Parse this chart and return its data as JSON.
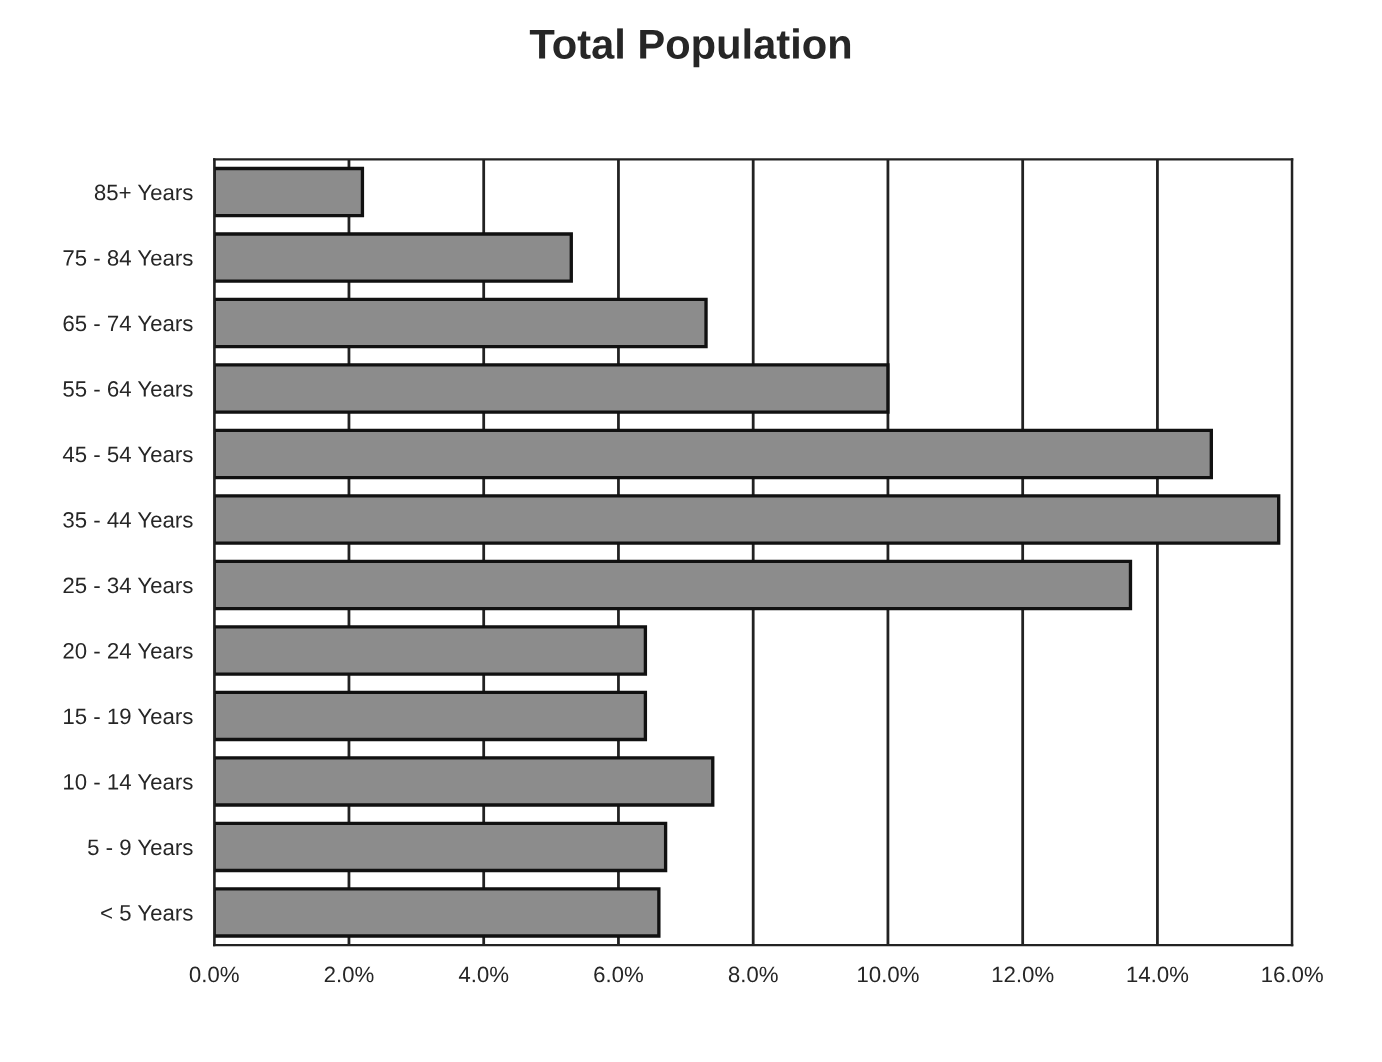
{
  "chart_data": {
    "type": "bar",
    "orientation": "horizontal",
    "title": "Total Population",
    "categories": [
      "85+ Years",
      "75 - 84 Years",
      "65 - 74 Years",
      "55 - 64 Years",
      "45 - 54 Years",
      "35 - 44 Years",
      "25 - 34 Years",
      "20 - 24 Years",
      "15 - 19 Years",
      "10 - 14 Years",
      "5 - 9 Years",
      "< 5 Years"
    ],
    "values": [
      2.2,
      5.3,
      7.3,
      10.0,
      14.8,
      15.8,
      13.6,
      6.4,
      6.4,
      7.4,
      6.7,
      6.6
    ],
    "color": "#8c8c8c",
    "xlim": [
      0,
      16
    ],
    "xticks": [
      {
        "value": 0,
        "label": "0.0%"
      },
      {
        "value": 2,
        "label": "2.0%"
      },
      {
        "value": 4,
        "label": "4.0%"
      },
      {
        "value": 6,
        "label": "6.0%"
      },
      {
        "value": 8,
        "label": "8.0%"
      },
      {
        "value": 10,
        "label": "10.0%"
      },
      {
        "value": 12,
        "label": "12.0%"
      },
      {
        "value": 14,
        "label": "14.0%"
      },
      {
        "value": 16,
        "label": "16.0%"
      }
    ],
    "grid": "x"
  }
}
